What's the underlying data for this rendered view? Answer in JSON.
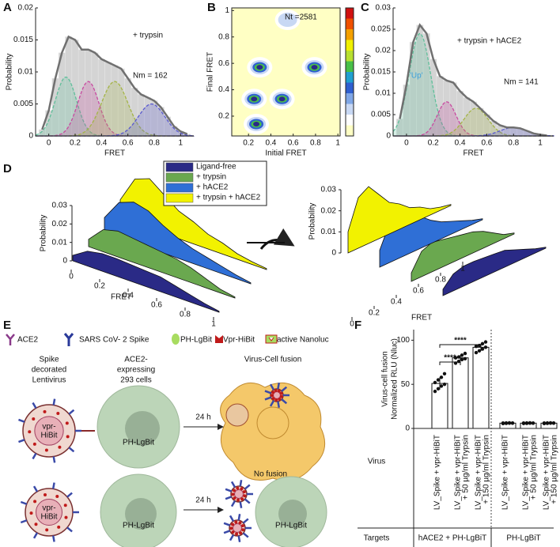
{
  "panel_labels": [
    "A",
    "B",
    "C",
    "D",
    "E",
    "F"
  ],
  "panel_a": {
    "type": "histogram",
    "xlabel": "FRET",
    "ylabel": "Probability",
    "annotation": "+ trypsin",
    "n_label": "Nm = 162",
    "xlim": [
      -0.1,
      1.1
    ],
    "ylim": [
      0,
      0.02
    ],
    "xticks": [
      0,
      0.2,
      0.4,
      0.6,
      0.8,
      1
    ],
    "yticks": [
      0,
      0.005,
      0.01,
      0.015,
      0.02
    ],
    "bins": [
      -0.075,
      -0.025,
      0.025,
      0.075,
      0.125,
      0.175,
      0.225,
      0.275,
      0.325,
      0.375,
      0.425,
      0.475,
      0.525,
      0.575,
      0.625,
      0.675,
      0.725,
      0.775,
      0.825,
      0.875,
      0.925,
      0.975,
      1.025,
      1.075
    ],
    "values": [
      0.001,
      0.004,
      0.009,
      0.013,
      0.0155,
      0.015,
      0.0135,
      0.0135,
      0.013,
      0.012,
      0.0115,
      0.011,
      0.0105,
      0.009,
      0.0075,
      0.0065,
      0.006,
      0.0055,
      0.0045,
      0.003,
      0.0015,
      0.0007,
      0.0003
    ],
    "color": "#d4d4d4",
    "fit_color": "#707070",
    "components": [
      {
        "color": "#5fbf9a",
        "center": 0.13,
        "height": 0.0092,
        "sd": 0.08
      },
      {
        "color": "#c84aa0",
        "center": 0.3,
        "height": 0.0085,
        "sd": 0.08
      },
      {
        "color": "#a4b446",
        "center": 0.5,
        "height": 0.0085,
        "sd": 0.1
      },
      {
        "color": "#5a5ad0",
        "center": 0.78,
        "height": 0.005,
        "sd": 0.1
      }
    ]
  },
  "panel_b": {
    "type": "contour",
    "xlabel": "Initial FRET",
    "ylabel": "Final FRET",
    "n_label": "Nt =2581",
    "xlim": [
      0.05,
      1.02
    ],
    "ylim": [
      0.05,
      1.02
    ],
    "xticks": [
      0.2,
      0.4,
      0.6,
      0.8,
      1
    ],
    "yticks": [
      0.2,
      0.4,
      0.6,
      0.8,
      1
    ],
    "peaks_x": [
      0.3,
      0.25,
      0.27,
      0.5,
      0.79,
      0.55
    ],
    "peaks_y": [
      0.57,
      0.33,
      0.14,
      0.33,
      0.57,
      0.93
    ],
    "background": "#ffffc4",
    "colorbar": [
      "#ffffc4",
      "#ffffff",
      "#c8d8f4",
      "#7fa6e6",
      "#2f5fd0",
      "#20a0d0",
      "#48c048",
      "#b8e030",
      "#f0f000",
      "#f4a000",
      "#f05000",
      "#d01010"
    ]
  },
  "panel_c": {
    "type": "histogram",
    "xlabel": "FRET",
    "ylabel": "Probability",
    "annotation": "+ trypsin + hACE2",
    "n_label": "Nm = 141",
    "peak_label": "'Up'",
    "xlim": [
      -0.1,
      1.1
    ],
    "ylim": [
      0,
      0.03
    ],
    "xticks": [
      0,
      0.2,
      0.4,
      0.6,
      0.8,
      1
    ],
    "yticks": [
      0,
      0.005,
      0.01,
      0.015,
      0.02,
      0.025,
      0.03
    ],
    "bins": [
      -0.075,
      -0.025,
      0.025,
      0.075,
      0.125,
      0.175,
      0.225,
      0.275,
      0.325,
      0.375,
      0.425,
      0.475,
      0.525,
      0.575,
      0.625,
      0.675,
      0.725,
      0.775,
      0.825,
      0.875,
      0.925,
      0.975,
      1.025,
      1.075
    ],
    "values": [
      0.004,
      0.012,
      0.022,
      0.026,
      0.024,
      0.018,
      0.014,
      0.013,
      0.0125,
      0.0105,
      0.009,
      0.008,
      0.0065,
      0.005,
      0.0035,
      0.0025,
      0.002,
      0.002,
      0.0018,
      0.0012,
      0.0006,
      0.0003,
      0.0001
    ],
    "color": "#d4d4d4",
    "fit_color": "#707070",
    "components": [
      {
        "color": "#5fbf9a",
        "center": 0.1,
        "height": 0.024,
        "sd": 0.08
      },
      {
        "color": "#c84aa0",
        "center": 0.3,
        "height": 0.008,
        "sd": 0.07
      },
      {
        "color": "#a4b446",
        "center": 0.52,
        "height": 0.0065,
        "sd": 0.09
      },
      {
        "color": "#5a5ad0",
        "center": 0.8,
        "height": 0.002,
        "sd": 0.1
      }
    ]
  },
  "panel_d": {
    "type": "waterfall",
    "xlabel": "FRET",
    "ylabel": "Probability",
    "ylim": [
      0,
      0.03
    ],
    "yticks": [
      0,
      0.01,
      0.02,
      0.03
    ],
    "xticks": [
      0,
      0.2,
      0.4,
      0.6,
      0.8,
      1
    ],
    "x": [
      0,
      0.1,
      0.2,
      0.3,
      0.4,
      0.5,
      0.6,
      0.7,
      0.8,
      0.9,
      1
    ],
    "series": [
      {
        "name": "Ligand-free",
        "color": "#2a2a86",
        "values": [
          0.003,
          0.008,
          0.0095,
          0.0095,
          0.009,
          0.0085,
          0.008,
          0.006,
          0.004,
          0.002,
          0.0005
        ]
      },
      {
        "name": "+ trypsin",
        "color": "#6aa84f",
        "values": [
          0.004,
          0.012,
          0.014,
          0.013,
          0.012,
          0.011,
          0.01,
          0.008,
          0.005,
          0.002,
          0.0005
        ]
      },
      {
        "name": "+ hACE2",
        "color": "#2f6fd6",
        "values": [
          0.008,
          0.019,
          0.022,
          0.02,
          0.015,
          0.011,
          0.008,
          0.006,
          0.004,
          0.002,
          0.0005
        ]
      },
      {
        "name": "+ trypsin + hACE2",
        "color": "#f2f200",
        "values": [
          0.01,
          0.024,
          0.027,
          0.021,
          0.015,
          0.012,
          0.008,
          0.006,
          0.003,
          0.0015,
          0.0005
        ]
      }
    ]
  },
  "panel_e": {
    "legend": [
      "ACE2",
      "SARS CoV- 2 Spike",
      "PH-LgBit",
      "Vpr-HiBit",
      "active Nanoluc"
    ],
    "headings": [
      [
        "Spike",
        "decorated",
        "Lentivirus"
      ],
      [
        "ACE2-",
        "expressing",
        "293 cells"
      ],
      [
        "Virus-Cell fusion"
      ]
    ],
    "virion_label": [
      "vpr-",
      "HiBit"
    ],
    "cell_label": "PH-LgBit",
    "time_label": "24 h",
    "no_fusion": "No  fusion"
  },
  "panel_f": {
    "type": "bar",
    "ylabel": [
      "Virus-cell fusion",
      "Normalized RLU (Nluc)"
    ],
    "ylim": [
      0,
      112
    ],
    "yticks": [
      0,
      50,
      100
    ],
    "categories": [
      [
        "LV_Spike + vpr-HiBiT"
      ],
      [
        "LV_Spike + vpr-HiBiT",
        "+ 50 µg/ml Trypsin"
      ],
      [
        "LV_Spike + vpr-HiBiT",
        "+ 150 µg/ml Trypsin"
      ],
      [
        "LV_Spike + vpr-HiBiT"
      ],
      [
        "LV_Spike + vpr-HiBiT",
        "+ 50 µg/ml Trypsin"
      ],
      [
        "LV_Spike + vpr-HiBiT",
        "+ 150 µg/ml Trypsin"
      ]
    ],
    "values": [
      51,
      80,
      92,
      6,
      6,
      6
    ],
    "errors": [
      7,
      3,
      4,
      0.5,
      0.5,
      0.5
    ],
    "points": [
      [
        42,
        45,
        48,
        50,
        52,
        55,
        58,
        62
      ],
      [
        74,
        76,
        78,
        79,
        80,
        81,
        83,
        85
      ],
      [
        86,
        88,
        90,
        92,
        93,
        94,
        96,
        98
      ],
      [
        5.5,
        5.8,
        6,
        6,
        6.1,
        6.2,
        6.3,
        6.1
      ],
      [
        5.6,
        5.8,
        6,
        6,
        6.1,
        6.2,
        6.3,
        6
      ],
      [
        5.5,
        5.8,
        6,
        6,
        6.1,
        6.2,
        6.3,
        6.1
      ]
    ],
    "color": "#ffffff",
    "significance": [
      "****",
      "****"
    ],
    "row_labels": [
      "Virus",
      "Targets"
    ],
    "targets": [
      "hACE2 + PH-LgBiT",
      "PH-LgBiT"
    ]
  }
}
